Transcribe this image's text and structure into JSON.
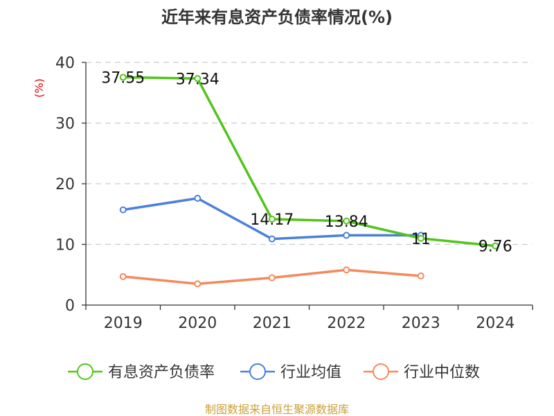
{
  "chart_data": {
    "type": "line",
    "title": "近年来有息资产负债率情况(%)",
    "ylabel": "(%)",
    "xlabel": "",
    "categories": [
      "2019",
      "2020",
      "2021",
      "2022",
      "2023",
      "2024"
    ],
    "ylim": [
      0,
      40
    ],
    "yticks": [
      0,
      10,
      20,
      30,
      40
    ],
    "grid": true,
    "legend_position": "bottom",
    "series": [
      {
        "name": "有息资产负债率",
        "color": "#52c41a",
        "values": [
          37.55,
          37.34,
          14.17,
          13.84,
          11,
          9.76
        ],
        "labels": [
          "37.55",
          "37.34",
          "14.17",
          "13.84",
          "11",
          "9.76"
        ]
      },
      {
        "name": "行业均值",
        "color": "#4a7fdb",
        "values": [
          15.7,
          17.6,
          10.9,
          11.5,
          11.5,
          null
        ]
      },
      {
        "name": "行业中位数",
        "color": "#f4895c",
        "values": [
          4.7,
          3.5,
          4.5,
          5.8,
          4.8,
          null
        ]
      }
    ]
  },
  "source": "制图数据来自恒生聚源数据库"
}
